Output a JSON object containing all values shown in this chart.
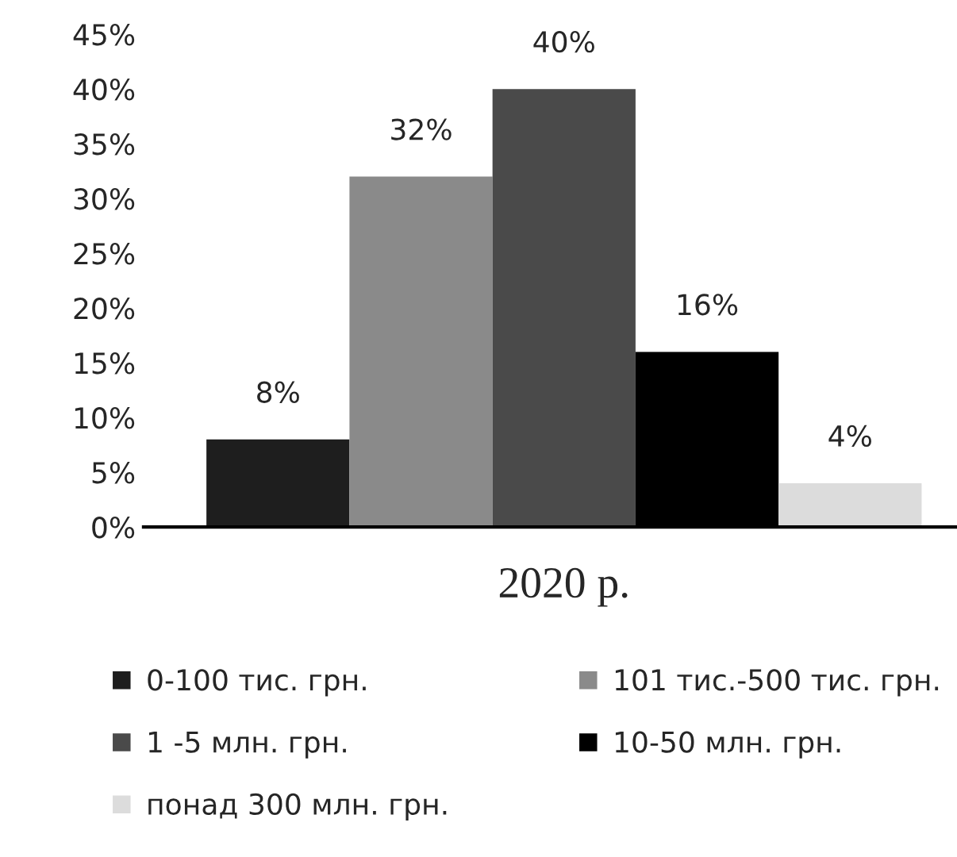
{
  "chart_data": {
    "type": "bar",
    "categories": [
      "2020 р."
    ],
    "series": [
      {
        "name": "0-100 тис. грн.",
        "color": "#1e1e1e",
        "values": [
          8
        ],
        "value_labels": [
          "8%"
        ]
      },
      {
        "name": "101 тис.-500 тис. грн.",
        "color": "#8a8a8a",
        "values": [
          32
        ],
        "value_labels": [
          "32%"
        ]
      },
      {
        "name": "1 -5 млн. грн.",
        "color": "#4a4a4a",
        "values": [
          40
        ],
        "value_labels": [
          "40%"
        ]
      },
      {
        "name": "10-50 млн. грн.",
        "color": "#000000",
        "values": [
          16
        ],
        "value_labels": [
          "16%"
        ]
      },
      {
        "name": "понад 300 млн. грн.",
        "color": "#dcdcdc",
        "values": [
          4
        ],
        "value_labels": [
          "4%"
        ]
      }
    ],
    "ylim": [
      0,
      45
    ],
    "yticks": [
      {
        "value": 0,
        "label": "0%"
      },
      {
        "value": 5,
        "label": "5%"
      },
      {
        "value": 10,
        "label": "10%"
      },
      {
        "value": 15,
        "label": "15%"
      },
      {
        "value": 20,
        "label": "20%"
      },
      {
        "value": 25,
        "label": "25%"
      },
      {
        "value": 30,
        "label": "30%"
      },
      {
        "value": 35,
        "label": "35%"
      },
      {
        "value": 40,
        "label": "40%"
      },
      {
        "value": 45,
        "label": "45%"
      }
    ],
    "grid": false,
    "legend": "bottom"
  }
}
